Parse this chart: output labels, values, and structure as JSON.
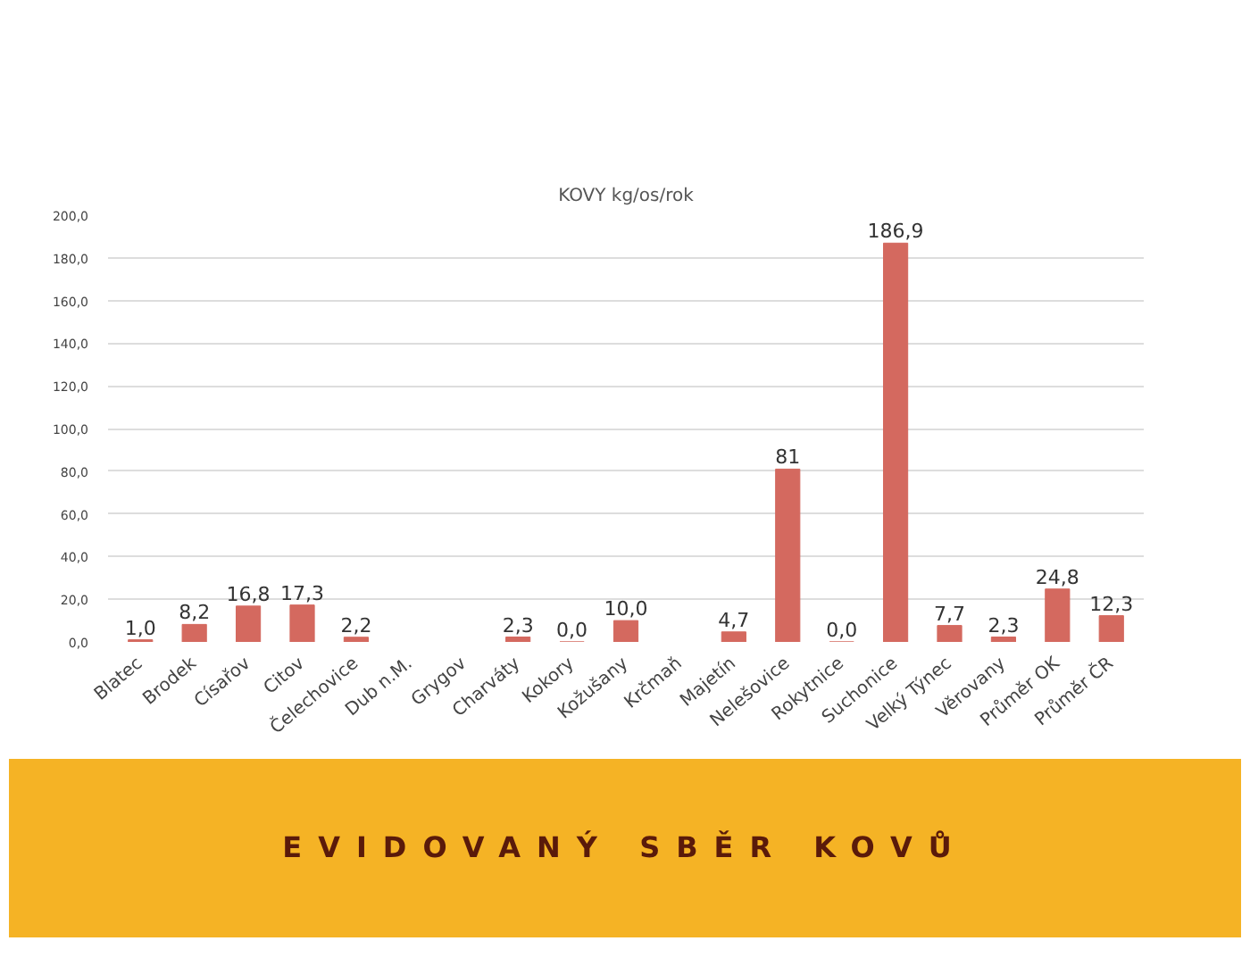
{
  "chart_data": {
    "type": "bar",
    "title": "KOVY kg/os/rok",
    "categories": [
      "Blatec",
      "Brodek",
      "Císařov",
      "Citov",
      "Čelechovice",
      "Dub n.M.",
      "Grygov",
      "Charváty",
      "Kokory",
      "Kožušany",
      "Krčmaň",
      "Majetín",
      "Nelešovice",
      "Rokytnice",
      "Suchonice",
      "Velký Týnec",
      "Věrovany",
      "Průměr OK",
      "Průměr ČR"
    ],
    "values": [
      1.0,
      8.2,
      16.8,
      17.3,
      2.2,
      null,
      null,
      2.3,
      0.0,
      10.0,
      null,
      4.7,
      81,
      0.0,
      186.9,
      7.7,
      2.3,
      24.8,
      12.3
    ],
    "value_labels": [
      "1,0",
      "8,2",
      "16,8",
      "17,3",
      "2,2",
      null,
      null,
      "2,3",
      "0,0",
      "10,0",
      null,
      "4,7",
      "81",
      "0,0",
      "186,9",
      "7,7",
      "2,3",
      "24,8",
      "12,3"
    ],
    "color": "#d4695f",
    "ylim": [
      0,
      200
    ],
    "yticks": [
      {
        "value": 0,
        "label": "0,0"
      },
      {
        "value": 20,
        "label": "20,0"
      },
      {
        "value": 40,
        "label": "40,0"
      },
      {
        "value": 60,
        "label": "60,0"
      },
      {
        "value": 80,
        "label": "80,0"
      },
      {
        "value": 100,
        "label": "100,0"
      },
      {
        "value": 120,
        "label": "120,0"
      },
      {
        "value": 140,
        "label": "140,0"
      },
      {
        "value": 160,
        "label": "160,0"
      },
      {
        "value": 180,
        "label": "180,0"
      },
      {
        "value": 200,
        "label": "200,0"
      }
    ],
    "grid": "y",
    "annotations": [
      "EVIDOVANÝ SBĚR KOVŮ"
    ]
  }
}
